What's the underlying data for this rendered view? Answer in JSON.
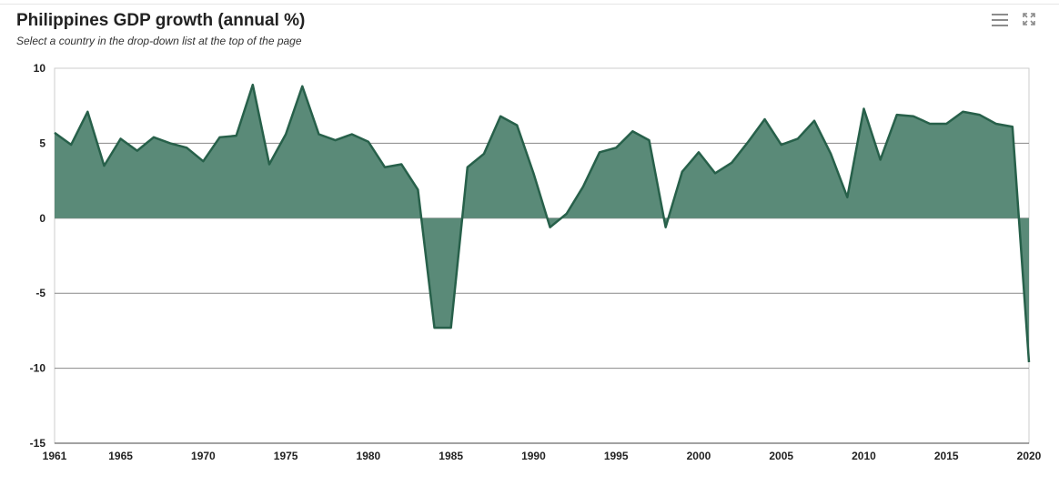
{
  "header": {
    "title": "Philippines GDP growth (annual %)",
    "subtitle": "Select a country in the drop-down list at the top of the page"
  },
  "toolbar": {
    "menu_icon": "hamburger-menu-icon",
    "expand_icon": "fullscreen-expand-icon"
  },
  "colors": {
    "fill": "#5a8a78",
    "line": "#27604a",
    "grid": "#888888",
    "frame": "#cccccc"
  },
  "chart_data": {
    "type": "area",
    "title": "Philippines GDP growth (annual %)",
    "xlabel": "",
    "ylabel": "",
    "xlim": [
      1961,
      2020
    ],
    "ylim": [
      -15,
      10
    ],
    "x_ticks": [
      1961,
      1965,
      1970,
      1975,
      1980,
      1985,
      1990,
      1995,
      2000,
      2005,
      2010,
      2015,
      2020
    ],
    "y_ticks": [
      10,
      5,
      0,
      -5,
      -10,
      -15
    ],
    "grid": true,
    "legend": "none",
    "series": [
      {
        "x": [
          1961,
          1962,
          1963,
          1964,
          1965,
          1966,
          1967,
          1968,
          1969,
          1970,
          1971,
          1972,
          1973,
          1974,
          1975,
          1976,
          1977,
          1978,
          1979,
          1980,
          1981,
          1982,
          1983,
          1984,
          1985,
          1986,
          1987,
          1988,
          1989,
          1990,
          1991,
          1992,
          1993,
          1994,
          1995,
          1996,
          1997,
          1998,
          1999,
          2000,
          2001,
          2002,
          2003,
          2004,
          2005,
          2006,
          2007,
          2008,
          2009,
          2010,
          2011,
          2012,
          2013,
          2014,
          2015,
          2016,
          2017,
          2018,
          2019,
          2020
        ],
        "values": [
          5.7,
          4.9,
          7.1,
          3.5,
          5.3,
          4.5,
          5.4,
          5.0,
          4.7,
          3.8,
          5.4,
          5.5,
          8.9,
          3.6,
          5.6,
          8.8,
          5.6,
          5.2,
          5.6,
          5.1,
          3.4,
          3.6,
          1.9,
          -7.3,
          -7.3,
          3.4,
          4.3,
          6.8,
          6.2,
          3.0,
          -0.6,
          0.3,
          2.1,
          4.4,
          4.7,
          5.8,
          5.2,
          -0.6,
          3.1,
          4.4,
          3.0,
          3.7,
          5.1,
          6.6,
          4.9,
          5.3,
          6.5,
          4.3,
          1.4,
          7.3,
          3.9,
          6.9,
          6.8,
          6.3,
          6.3,
          7.1,
          6.9,
          6.3,
          6.1,
          -9.6
        ]
      }
    ]
  }
}
